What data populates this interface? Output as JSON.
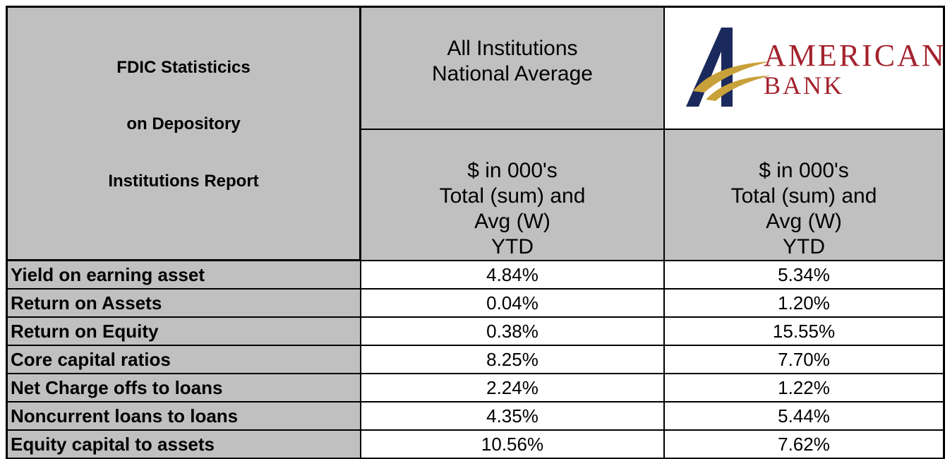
{
  "header": {
    "title_lines": [
      "FDIC Statisticics",
      "on Depository",
      "Institutions Report"
    ],
    "columns": [
      {
        "heading_lines": [
          "All Institutions",
          "National Average"
        ],
        "sub_lines": [
          "$ in 000's",
          "Total (sum) and",
          "Avg (W)",
          "YTD"
        ]
      },
      {
        "logo_lines": [
          "AMERICAN",
          "BANK"
        ],
        "sub_lines": [
          "$ in 000's",
          "Total (sum) and",
          "Avg (W)",
          "YTD"
        ]
      }
    ]
  },
  "table": {
    "rows": [
      [
        "Yield on earning asset",
        "4.84%",
        "5.34%"
      ],
      [
        "Return on Assets",
        "0.04%",
        "1.20%"
      ],
      [
        "Return on Equity",
        "0.38%",
        "15.55%"
      ],
      [
        "Core capital ratios",
        "8.25%",
        "7.70%"
      ],
      [
        "Net Charge offs to loans",
        "2.24%",
        "1.22%"
      ],
      [
        "Noncurrent loans to loans",
        "4.35%",
        "5.44%"
      ],
      [
        "Equity capital to assets",
        "10.56%",
        "7.62%"
      ]
    ]
  }
}
